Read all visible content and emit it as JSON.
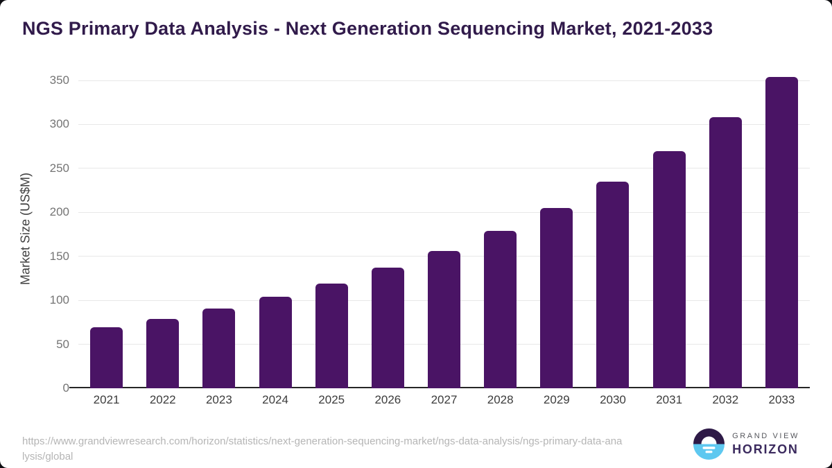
{
  "header": {
    "title": "NGS Primary Data Analysis - Next Generation Sequencing Market, 2021-2033"
  },
  "chart_data": {
    "type": "bar",
    "title": "NGS Primary Data Analysis - Next Generation Sequencing Market, 2021-2033",
    "categories": [
      "2021",
      "2022",
      "2023",
      "2024",
      "2025",
      "2026",
      "2027",
      "2028",
      "2029",
      "2030",
      "2031",
      "2032",
      "2033"
    ],
    "values": [
      69,
      79,
      91,
      104,
      119,
      137,
      156,
      179,
      205,
      235,
      270,
      308,
      354
    ],
    "xlabel": "",
    "ylabel": "Market Size (US$M)",
    "ylim": [
      0,
      350
    ],
    "yticks": [
      0,
      50,
      100,
      150,
      200,
      250,
      300,
      350
    ],
    "grid": "horizontal",
    "legend": "none",
    "bar_color": "#4a1465"
  },
  "footer": {
    "source_url_line1": "https://www.grandviewresearch.com/horizon/statistics/next-generation-sequencing-market/ngs-data-analysis/ngs-primary-data-ana",
    "source_url_line2": "lysis/global",
    "logo": {
      "brand_top": "GRAND VIEW",
      "brand_bottom": "HORIZON",
      "mark_dark_color": "#2e1a47",
      "mark_blue_color": "#5ec8f0"
    }
  }
}
